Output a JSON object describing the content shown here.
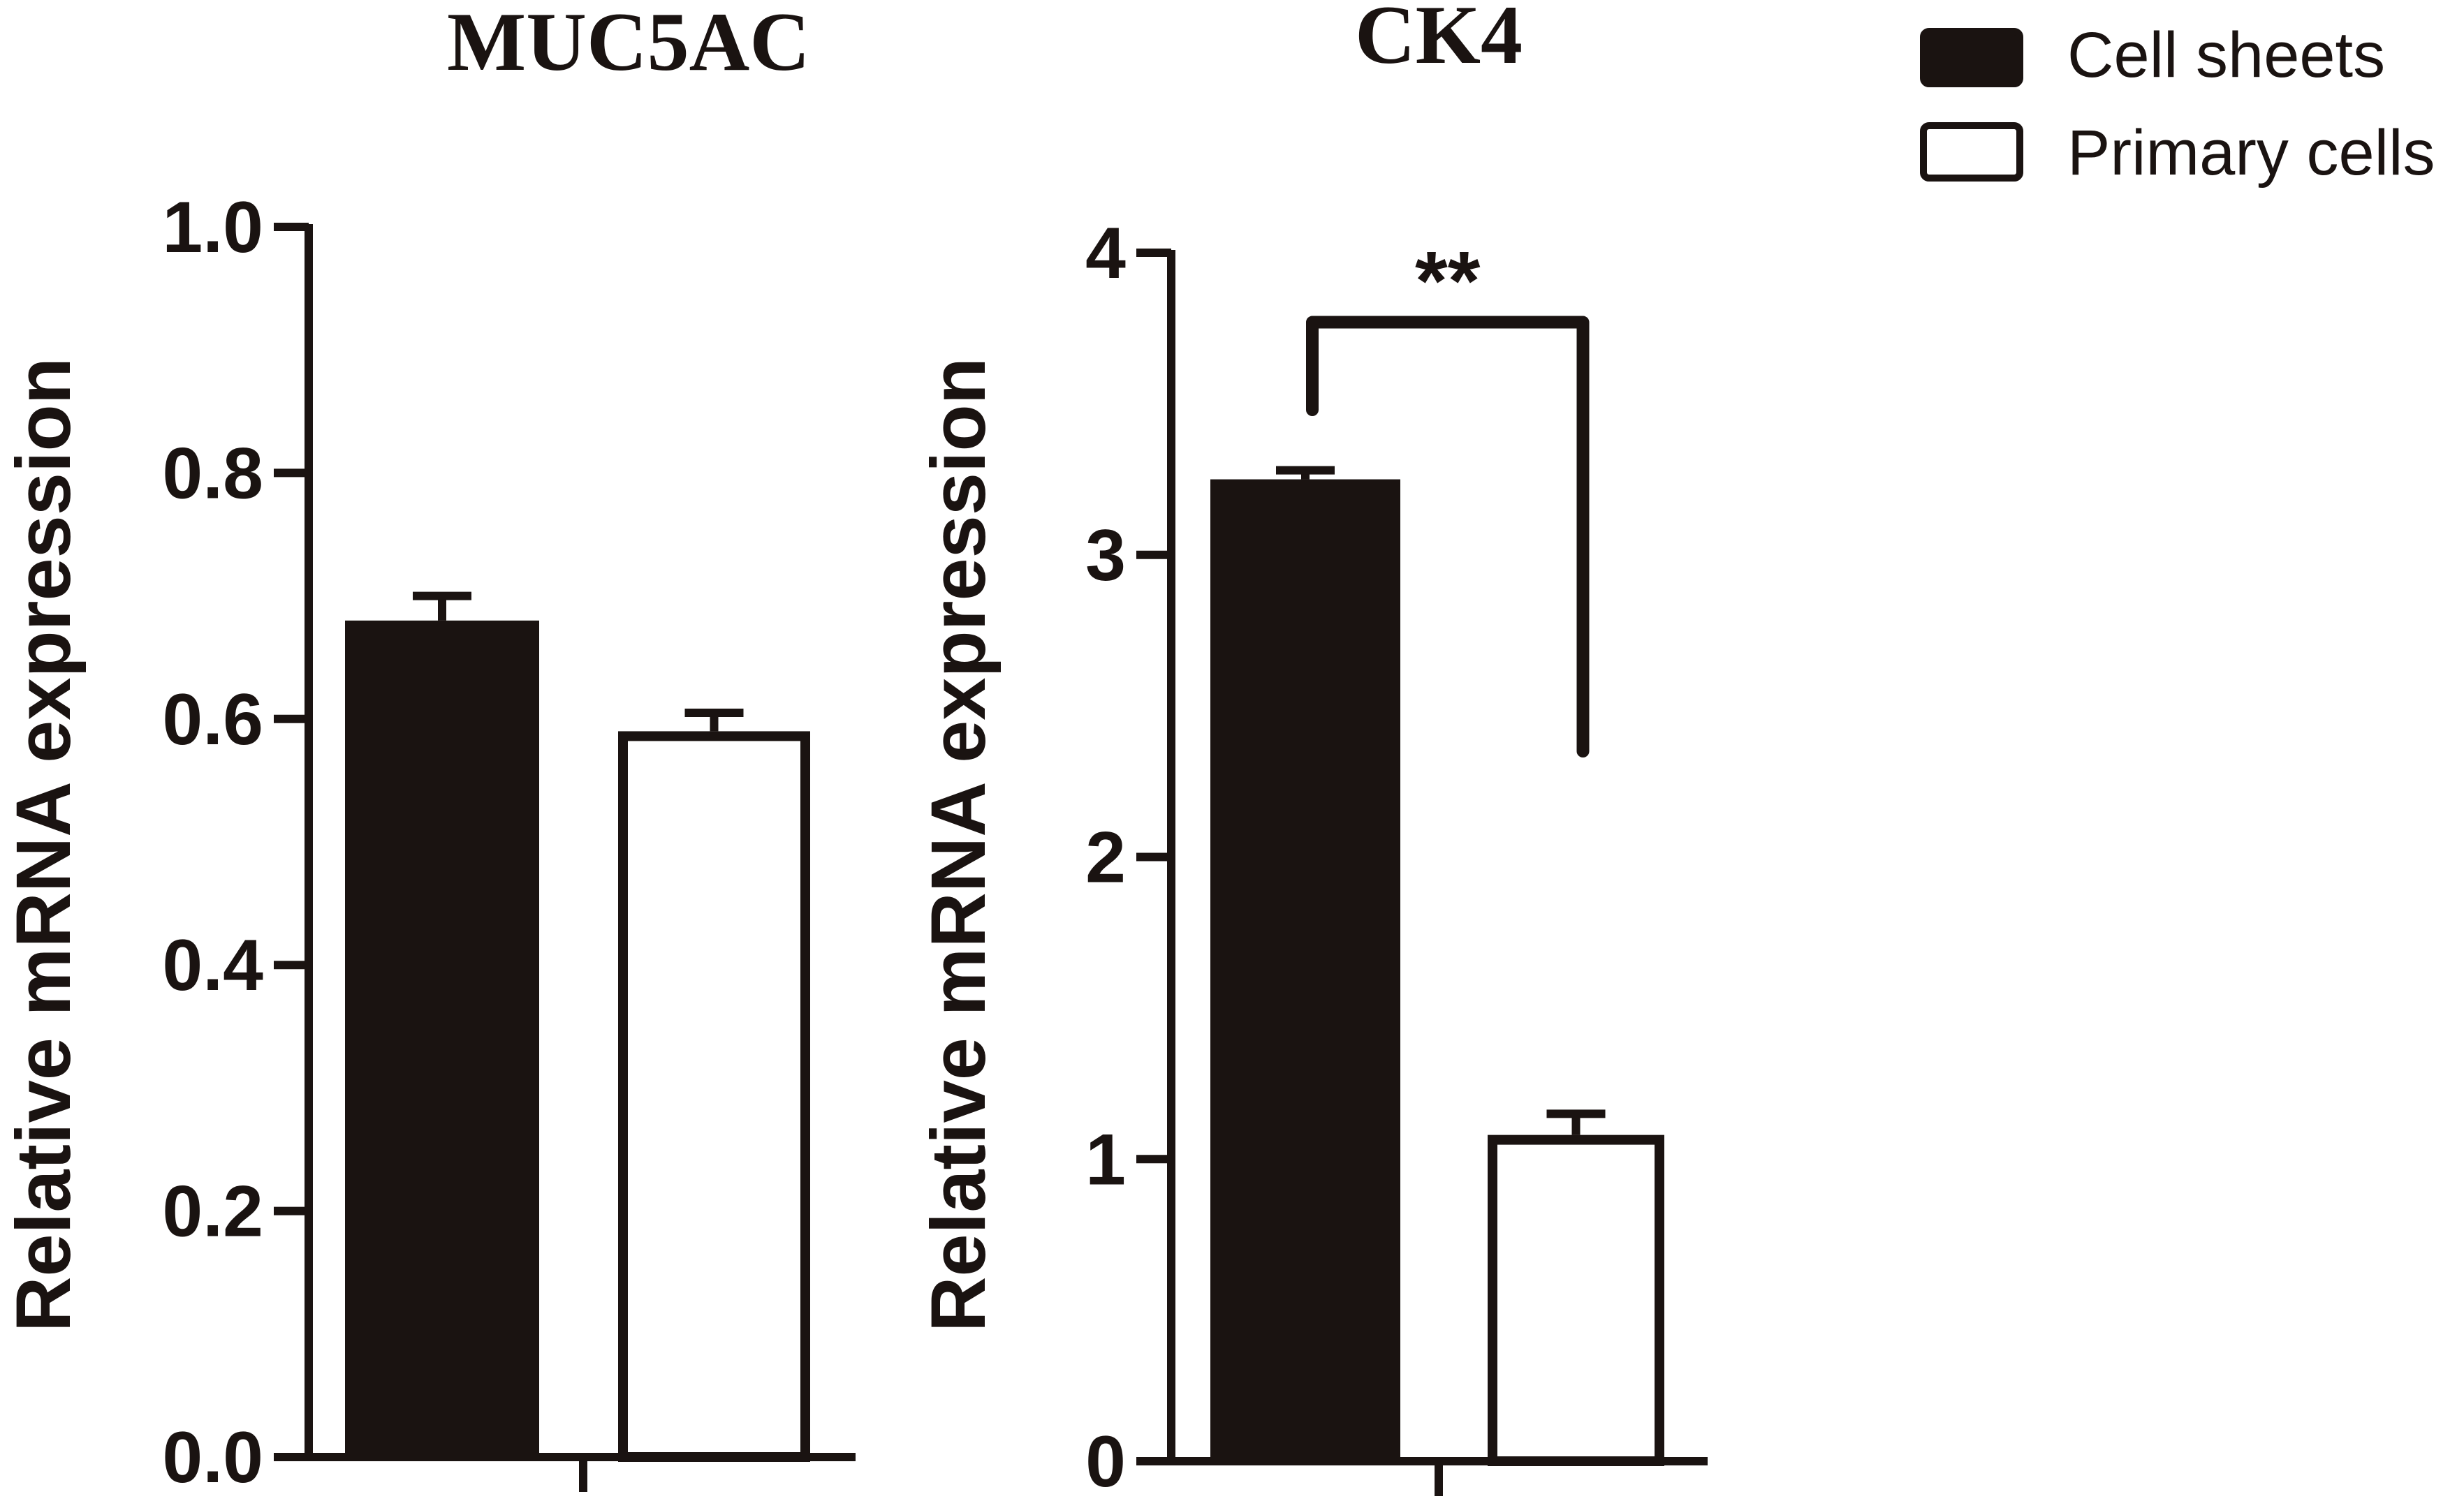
{
  "legend": {
    "items": [
      {
        "label": "Cell sheets",
        "fill": "#1a1311"
      },
      {
        "label": "Primary cells",
        "fill": "#ffffff"
      }
    ]
  },
  "colors": {
    "ink": "#1a1311",
    "background": "#ffffff"
  },
  "chart_data": [
    {
      "type": "bar",
      "title": "MUC5AC",
      "ylabel": "Relative mRNA expression",
      "xlabel": "",
      "ylim": [
        0,
        1.0
      ],
      "yticks": [
        0.0,
        0.2,
        0.4,
        0.6,
        0.8,
        1.0
      ],
      "ytick_labels": [
        "0.0",
        "0.2",
        "0.4",
        "0.6",
        "0.8",
        "1.0"
      ],
      "grid": false,
      "legend_position": "top-right",
      "series": [
        {
          "name": "Cell sheets",
          "value": 0.68,
          "error": 0.02,
          "fill": "#1a1311"
        },
        {
          "name": "Primary cells",
          "value": 0.59,
          "error": 0.015,
          "fill": "#ffffff"
        }
      ],
      "significance": null
    },
    {
      "type": "bar",
      "title": "CK4",
      "ylabel": "Relative mRNA expression",
      "xlabel": "",
      "ylim": [
        0,
        4
      ],
      "yticks": [
        0,
        1,
        2,
        3,
        4
      ],
      "ytick_labels": [
        "0",
        "1",
        "2",
        "3",
        "4"
      ],
      "grid": false,
      "legend_position": "top-right",
      "series": [
        {
          "name": "Cell sheets",
          "value": 3.25,
          "error": 0.03,
          "fill": "#1a1311"
        },
        {
          "name": "Primary cells",
          "value": 1.08,
          "error": 0.07,
          "fill": "#ffffff"
        }
      ],
      "significance": {
        "label": "**",
        "left_end": 3.48,
        "top": 3.77,
        "right_end": 2.35
      }
    }
  ]
}
